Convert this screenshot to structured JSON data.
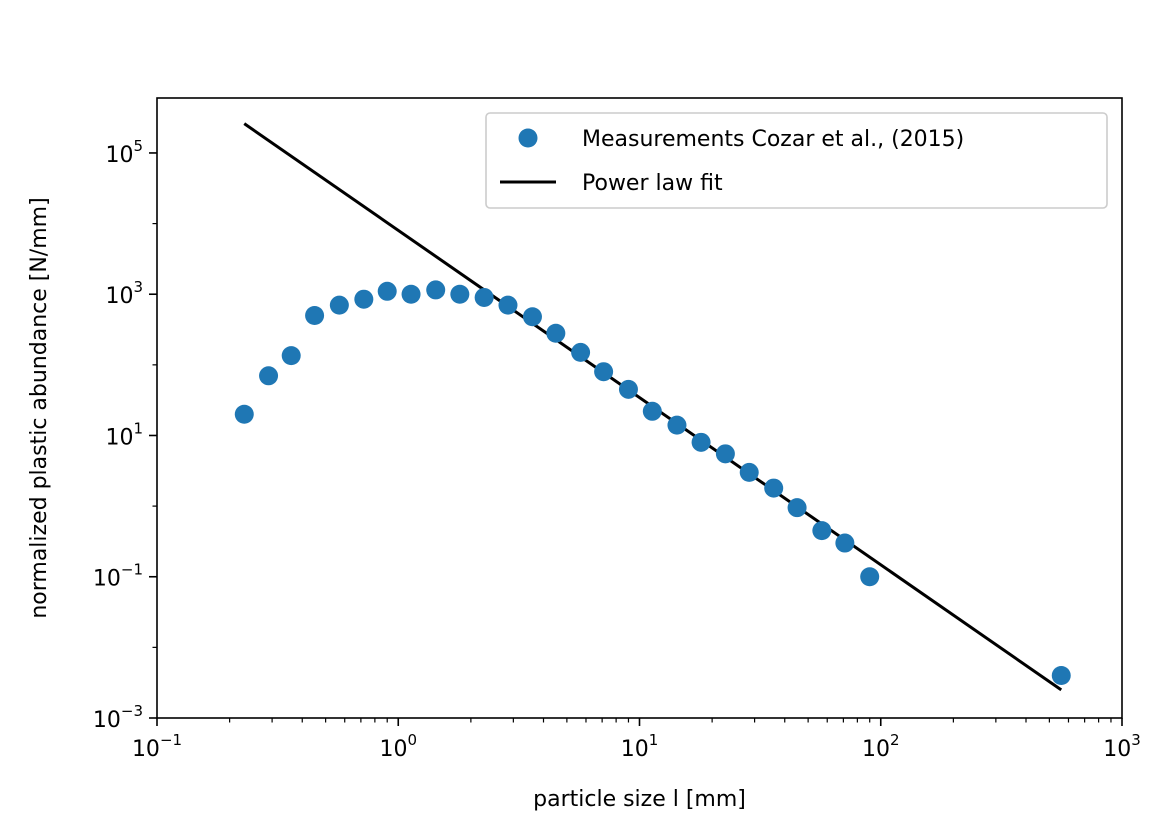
{
  "chart_data": {
    "type": "scatter",
    "title": "",
    "xlabel": "particle size l [mm]",
    "ylabel": "normalized plastic abundance [N/mm]",
    "xscale": "log",
    "yscale": "log",
    "xlim": [
      0.1,
      1000
    ],
    "ylim": [
      0.001,
      600000
    ],
    "grid": false,
    "legend_position": "top-right",
    "x_ticks": [
      {
        "value": 0.1,
        "base": "10",
        "exp": "−1"
      },
      {
        "value": 1,
        "base": "10",
        "exp": "0"
      },
      {
        "value": 10,
        "base": "10",
        "exp": "1"
      },
      {
        "value": 100,
        "base": "10",
        "exp": "2"
      },
      {
        "value": 1000,
        "base": "10",
        "exp": "3"
      }
    ],
    "y_ticks": [
      {
        "value": 0.001,
        "base": "10",
        "exp": "−3"
      },
      {
        "value": 0.1,
        "base": "10",
        "exp": "−1"
      },
      {
        "value": 10,
        "base": "10",
        "exp": "1"
      },
      {
        "value": 1000,
        "base": "10",
        "exp": "3"
      },
      {
        "value": 100000,
        "base": "10",
        "exp": "5"
      }
    ],
    "series": [
      {
        "name": "Measurements Cozar et al., (2015)",
        "kind": "scatter",
        "color": "#1f77b4",
        "x": [
          0.23,
          0.29,
          0.36,
          0.45,
          0.57,
          0.72,
          0.9,
          1.13,
          1.43,
          1.8,
          2.27,
          2.85,
          3.6,
          4.5,
          5.7,
          7.1,
          9.0,
          11.3,
          14.3,
          18.0,
          22.7,
          28.5,
          36.0,
          45.0,
          57.0,
          71.0,
          90.0,
          560.0
        ],
        "y": [
          20,
          70,
          135,
          500,
          700,
          850,
          1100,
          1000,
          1150,
          1000,
          900,
          700,
          480,
          280,
          150,
          80,
          45,
          22,
          14,
          8,
          5.5,
          3,
          1.8,
          0.95,
          0.45,
          0.3,
          0.1,
          0.004
        ]
      },
      {
        "name": "Power law fit",
        "kind": "line",
        "color": "#000000",
        "x": [
          0.23,
          560.0
        ],
        "y": [
          260000,
          0.0025
        ]
      }
    ]
  }
}
